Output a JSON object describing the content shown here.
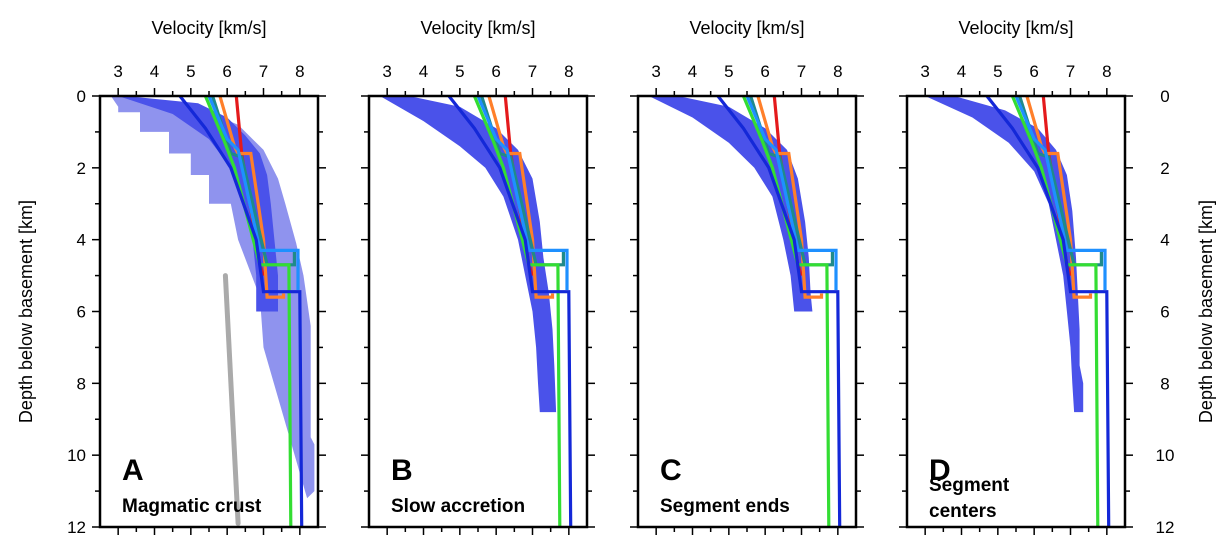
{
  "chart_data": {
    "type": "line",
    "xlabel": "Velocity [km/s]",
    "ylabel": "Depth below basement [km]",
    "xlim": [
      2.5,
      8.5
    ],
    "ylim": [
      12,
      0
    ],
    "x_ticks": [
      3,
      4,
      5,
      6,
      7,
      8
    ],
    "y_ticks": [
      0,
      2,
      4,
      6,
      8,
      10,
      12
    ],
    "grid": false,
    "colors": {
      "red": "#e41a1c",
      "orange": "#ff7f2a",
      "teal": "#1f8a8a",
      "lightblue": "#1e90ff",
      "green": "#33dd33",
      "blue": "#1428d8",
      "band_dark": "#4a52ea",
      "band_light": "#8f93ee",
      "gray": "#aaaaaa"
    },
    "reference_curves": [
      {
        "color": "red",
        "points": [
          [
            6.25,
            0
          ],
          [
            6.4,
            1.6
          ],
          [
            6.9,
            4.7
          ],
          [
            7.0,
            5.0
          ]
        ]
      },
      {
        "color": "orange",
        "points": [
          [
            5.8,
            0
          ],
          [
            6.2,
            1.4
          ],
          [
            6.3,
            1.6
          ],
          [
            6.65,
            1.6
          ],
          [
            7.0,
            4.0
          ],
          [
            7.1,
            5.6
          ],
          [
            7.55,
            5.6
          ],
          [
            7.55,
            5.5
          ]
        ]
      },
      {
        "color": "teal",
        "points": [
          [
            5.6,
            0
          ],
          [
            6.1,
            1.6
          ],
          [
            6.4,
            1.7
          ],
          [
            7.1,
            4.7
          ],
          [
            7.85,
            4.7
          ],
          [
            7.85,
            4.3
          ]
        ]
      },
      {
        "color": "lightblue",
        "points": [
          [
            5.5,
            0
          ],
          [
            6.0,
            1.2
          ],
          [
            6.3,
            1.5
          ],
          [
            6.9,
            4.3
          ],
          [
            7.95,
            4.3
          ],
          [
            7.95,
            5.4
          ]
        ]
      },
      {
        "color": "green",
        "points": [
          [
            5.4,
            0
          ],
          [
            5.9,
            1.2
          ],
          [
            6.2,
            2.0
          ],
          [
            6.9,
            4.7
          ],
          [
            7.7,
            4.7
          ],
          [
            7.75,
            12
          ]
        ]
      },
      {
        "color": "blue",
        "points": [
          [
            4.7,
            0
          ],
          [
            5.4,
            0.9
          ],
          [
            6.1,
            2.0
          ],
          [
            6.8,
            4.0
          ],
          [
            7.0,
            5.45
          ],
          [
            8.0,
            5.45
          ],
          [
            8.05,
            12
          ]
        ]
      }
    ],
    "panels": [
      {
        "letter": "A",
        "caption": [
          "Magmatic crust"
        ],
        "bands": [
          {
            "shade": "band_light",
            "upper": [
              [
                2.8,
                0
              ],
              [
                3.0,
                0.3
              ],
              [
                3.0,
                0.45
              ],
              [
                3.6,
                0.45
              ],
              [
                3.6,
                1.0
              ],
              [
                4.4,
                1.0
              ],
              [
                4.4,
                1.6
              ],
              [
                5.0,
                1.6
              ],
              [
                5.0,
                2.2
              ],
              [
                5.5,
                2.2
              ],
              [
                5.5,
                3.0
              ],
              [
                6.1,
                3.0
              ],
              [
                6.3,
                4.0
              ],
              [
                6.6,
                4.8
              ],
              [
                6.9,
                5.6
              ],
              [
                7.0,
                7.0
              ]
            ],
            "lower": [
              [
                3.0,
                0
              ],
              [
                5.0,
                0.25
              ],
              [
                6.3,
                0.8
              ],
              [
                7.0,
                1.5
              ],
              [
                7.4,
                2.3
              ],
              [
                7.6,
                3.0
              ],
              [
                7.9,
                4.1
              ],
              [
                8.1,
                5.0
              ],
              [
                8.3,
                6.4
              ],
              [
                8.3,
                9.5
              ],
              [
                8.4,
                9.7
              ],
              [
                8.4,
                11.0
              ],
              [
                8.2,
                11.2
              ]
            ]
          },
          {
            "shade": "band_dark",
            "upper": [
              [
                3.0,
                0
              ],
              [
                4.5,
                0.5
              ],
              [
                5.5,
                1.2
              ],
              [
                6.1,
                2.0
              ],
              [
                6.5,
                3.0
              ],
              [
                6.7,
                4.0
              ],
              [
                6.8,
                5.0
              ],
              [
                6.8,
                6.0
              ]
            ],
            "lower": [
              [
                3.2,
                0
              ],
              [
                5.2,
                0.2
              ],
              [
                6.0,
                0.6
              ],
              [
                6.5,
                1.1
              ],
              [
                6.9,
                1.6
              ],
              [
                7.1,
                2.2
              ],
              [
                7.2,
                3.0
              ],
              [
                7.3,
                4.0
              ],
              [
                7.4,
                5.0
              ],
              [
                7.4,
                6.0
              ]
            ]
          }
        ],
        "gray_curve": [
          [
            5.95,
            5.0
          ],
          [
            6.3,
            11.9
          ]
        ]
      },
      {
        "letter": "B",
        "caption": [
          "Slow accretion"
        ],
        "bands": [
          {
            "shade": "band_dark",
            "upper": [
              [
                2.8,
                0
              ],
              [
                4.0,
                0.7
              ],
              [
                5.0,
                1.4
              ],
              [
                5.7,
                2.0
              ],
              [
                6.2,
                2.8
              ],
              [
                6.6,
                4.0
              ],
              [
                6.8,
                5.0
              ],
              [
                7.0,
                6.0
              ],
              [
                7.1,
                7.0
              ],
              [
                7.15,
                8.0
              ],
              [
                7.2,
                8.8
              ]
            ],
            "lower": [
              [
                3.6,
                0
              ],
              [
                5.0,
                0.3
              ],
              [
                6.0,
                0.9
              ],
              [
                6.6,
                1.5
              ],
              [
                7.0,
                2.3
              ],
              [
                7.2,
                3.5
              ],
              [
                7.3,
                4.5
              ],
              [
                7.45,
                5.5
              ],
              [
                7.55,
                6.5
              ],
              [
                7.6,
                7.5
              ],
              [
                7.65,
                8.8
              ]
            ]
          }
        ]
      },
      {
        "letter": "C",
        "caption": [
          "Segment ends"
        ],
        "bands": [
          {
            "shade": "band_dark",
            "upper": [
              [
                2.8,
                0
              ],
              [
                4.0,
                0.6
              ],
              [
                5.0,
                1.3
              ],
              [
                5.7,
                2.0
              ],
              [
                6.2,
                2.8
              ],
              [
                6.5,
                4.0
              ],
              [
                6.7,
                5.0
              ],
              [
                6.8,
                6.0
              ]
            ],
            "lower": [
              [
                3.6,
                0
              ],
              [
                5.0,
                0.3
              ],
              [
                6.0,
                0.9
              ],
              [
                6.6,
                1.5
              ],
              [
                6.9,
                2.3
              ],
              [
                7.1,
                3.5
              ],
              [
                7.2,
                4.5
              ],
              [
                7.25,
                5.5
              ],
              [
                7.3,
                6.0
              ]
            ]
          }
        ]
      },
      {
        "letter": "D",
        "caption": [
          "Segment",
          "centers"
        ],
        "bands": [
          {
            "shade": "band_dark",
            "upper": [
              [
                3.0,
                0
              ],
              [
                4.3,
                0.6
              ],
              [
                5.3,
                1.3
              ],
              [
                6.0,
                2.1
              ],
              [
                6.4,
                3.0
              ],
              [
                6.6,
                4.0
              ],
              [
                6.8,
                5.0
              ],
              [
                6.9,
                6.0
              ],
              [
                7.0,
                7.0
              ],
              [
                7.05,
                8.0
              ],
              [
                7.1,
                8.8
              ]
            ],
            "lower": [
              [
                3.8,
                0
              ],
              [
                5.2,
                0.4
              ],
              [
                6.1,
                0.9
              ],
              [
                6.6,
                1.5
              ],
              [
                6.9,
                2.2
              ],
              [
                7.05,
                3.2
              ],
              [
                7.15,
                4.5
              ],
              [
                7.2,
                5.5
              ],
              [
                7.25,
                6.5
              ],
              [
                7.25,
                7.5
              ],
              [
                7.35,
                8.0
              ],
              [
                7.35,
                8.8
              ]
            ]
          }
        ]
      }
    ]
  }
}
